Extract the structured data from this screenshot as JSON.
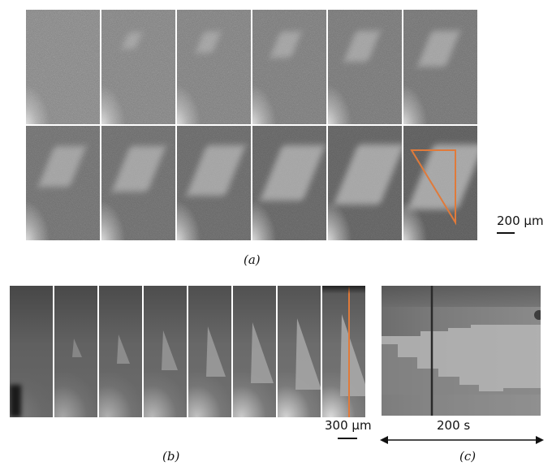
{
  "figure": {
    "panel_a": {
      "label": "(a)",
      "scale_label": "200 μm",
      "frame_count": 12
    },
    "panel_b": {
      "label": "(b)",
      "scale_label": "300 μm",
      "frame_count": 8
    },
    "panel_c": {
      "label": "(c)",
      "time_label": "200 s"
    },
    "colors": {
      "overlay": "#e07a3a"
    }
  }
}
